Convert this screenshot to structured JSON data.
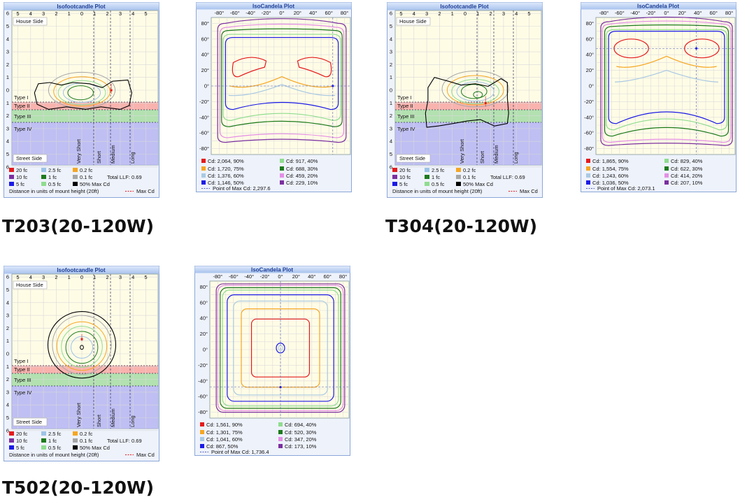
{
  "isofootcandle_plot": {
    "title": "Isofootcandle Plot",
    "x_axis": [
      "5",
      "4",
      "3",
      "2",
      "1",
      "0",
      "1",
      "2",
      "3",
      "4",
      "5"
    ],
    "y_axis": [
      "6",
      "5",
      "4",
      "3",
      "2",
      "1",
      "0",
      "1",
      "2",
      "3",
      "4",
      "5",
      "6"
    ],
    "house_side": "House Side",
    "street_side": "Street Side",
    "types": [
      "Type I",
      "Type II",
      "Type III",
      "Type IV"
    ],
    "ranges": [
      "Very Short",
      "Short",
      "Medium",
      "Long"
    ],
    "legend": [
      "20 fc",
      "2.5 fc",
      "0.2 fc",
      "10 fc",
      "1 fc",
      "0.1 fc",
      "5 fc",
      "0.5 fc",
      "50% Max Cd"
    ],
    "llf": "Total LLF: 0.69",
    "distance_note": "Distance in units of mount height (20ft)",
    "max_cd": "Max Cd"
  },
  "isocandela_plot": {
    "title": "IsoCandela Plot",
    "x_axis": [
      "-80°",
      "-60°",
      "-40°",
      "-20°",
      "0°",
      "20°",
      "40°",
      "60°",
      "80°"
    ],
    "y_axis": [
      "80°",
      "60°",
      "40°",
      "20°",
      "0°",
      "-20°",
      "-40°",
      "-60°",
      "-80°"
    ]
  },
  "products": [
    {
      "label": "T203(20-120W)",
      "isocandela_legend": [
        "Cd: 2,064, 90%",
        "Cd: 1,720, 75%",
        "Cd: 1,376, 60%",
        "Cd: 1,146, 50%",
        "Cd: 917, 40%",
        "Cd: 688, 30%",
        "Cd: 459, 20%",
        "Cd: 229, 10%"
      ],
      "max_cd_point": "Point of Max Cd: 2,297.6"
    },
    {
      "label": "T304(20-120W)",
      "isocandela_legend": [
        "Cd: 1,865, 90%",
        "Cd: 1,554, 75%",
        "Cd: 1,243, 60%",
        "Cd: 1,036, 50%",
        "Cd: 829, 40%",
        "Cd: 622, 30%",
        "Cd: 414, 20%",
        "Cd: 207, 10%"
      ],
      "max_cd_point": "Point of Max Cd: 2,073.1"
    },
    {
      "label": "T502(20-120W)",
      "isocandela_legend": [
        "Cd: 1,561, 90%",
        "Cd: 1,301, 75%",
        "Cd: 1,041, 60%",
        "Cd: 867, 50%",
        "Cd: 694, 40%",
        "Cd: 520, 30%",
        "Cd: 347, 20%",
        "Cd: 173, 10%"
      ],
      "max_cd_point": "Point of Max Cd: 1,736.4"
    }
  ]
}
